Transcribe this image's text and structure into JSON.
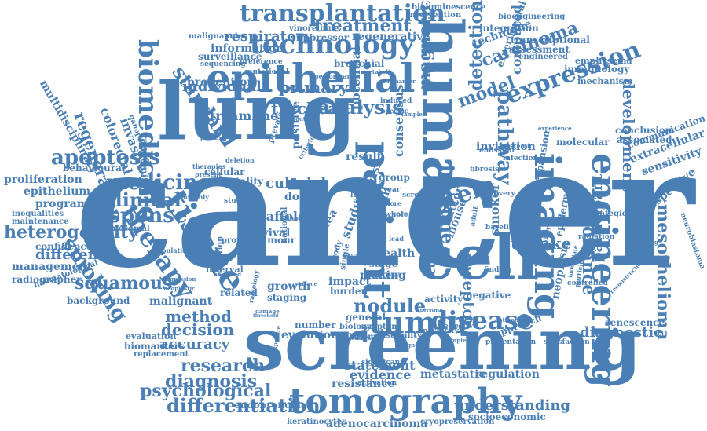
{
  "accent_color": "#4a7fb5",
  "background_color": "#ffffff",
  "words": {
    "cancer": "cancer",
    "screening": "screening",
    "lung": "lung",
    "cell": "cell",
    "epithelial": "epithelial",
    "human": "human",
    "science": "Science",
    "tissue": "tissue",
    "patient": "patient",
    "imaging": "imaging",
    "engineering": "engineering",
    "tomography": "tomography",
    "technology": "technology",
    "transplantation": "transplantation",
    "tumor": "tumor",
    "disease": "disease",
    "biomedicine": "biomedicine",
    "therapy": "therapy",
    "medicine": "medicine",
    "response": "response",
    "clinical": "clinical",
    "apoptosis": "apoptosis",
    "heterogeneity": "heterogeneity",
    "smoking": "smoking",
    "expression": "expression",
    "pathway": "pathway",
    "model": "model",
    "detection": "detection",
    "carcinoma": "carcinoma",
    "magnetic": "magnetic",
    "stem": "stem",
    "nodule": "nodule",
    "development": "development",
    "mesothelioma": "mesothelioma",
    "diagnostic": "diagnostic",
    "resonance": "resonance",
    "diagnosis": "diagnosis",
    "psychological": "psychological",
    "differentiation": "differentiation",
    "research": "research",
    "adenocarcinoma": "adenocarcinoma",
    "understanding": "understanding",
    "respiratory": "respiratory",
    "treatment": "treatment",
    "analysis": "analysis",
    "tracheal": "tracheal",
    "standard": "standard",
    "regeneration": "regeneration",
    "squamous": "squamous",
    "difference": "difference",
    "uptake": "uptake",
    "immune": "immune",
    "receptor": "receptor",
    "participant": "participant",
    "accuracy": "accuracy",
    "decision": "decision",
    "method": "method",
    "proliferation": "proliferation",
    "epithelium": "epithelium",
    "programme": "programme",
    "multidisciplinary": "multidisciplinary",
    "colorectal": "colorectal",
    "invasive": "invasive",
    "behavioural": "behavioural",
    "confidence": "confidence",
    "management": "management",
    "radiographer": "radiographer",
    "background": "background",
    "biomarkers": "biomarkers",
    "evaluation": "evaluation",
    "replacement": "replacement",
    "malignant": "malignant",
    "statement": "statement",
    "evidence": "evidence",
    "resistance": "resistance",
    "endobronchial": "endobronchial",
    "keratinocytes": "keratinocytes",
    "cryopreservation": "cryopreservation",
    "socioeconomic": "socioeconomic",
    "metastatic": "metastatic",
    "regulation": "regulation",
    "neoplasm": "neoplasm",
    "senescence": "senescence",
    "sensitivity": "sensitivity",
    "prospective": "prospective",
    "extracellular": "extracellular",
    "communication": "communication",
    "conclusion": "conclusion",
    "associated": "associated",
    "molecular": "molecular",
    "emphysema": "emphysema",
    "immunology": "immunology",
    "mechanism": "mechanism",
    "engineered": "engineered",
    "transcriptional": "transcriptional",
    "assessment": "assessment",
    "experimental": "experimental",
    "technique": "technique",
    "integration": "integration",
    "bioengineering": "bioengineering",
    "intervention": "intervention",
    "bioluminescence": "bioluminescence",
    "regenerative": "regenerative",
    "suppressor": "suppressor",
    "vinorelbine": "vinorelbine",
    "information": "information",
    "malignancies": "malignancies",
    "surveillance": "surveillance",
    "individual": "individual",
    "progenitor": "progenitor",
    "primary": "primary",
    "streamline": "streamline",
    "culture": "culture",
    "trial": "trial",
    "scaffold": "scaffold",
    "survival": "survival",
    "potential": "potential",
    "result": "result",
    "consensus": "consensus",
    "invitation": "invitation",
    "mouse": "mouse",
    "smoker": "smoker",
    "factor": "factor",
    "current": "current",
    "activity": "activity",
    "negative": "negative",
    "evolution": "evolution",
    "number": "number",
    "general": "general",
    "health": "health",
    "data": "data",
    "stage": "stage",
    "making": "making",
    "review": "review",
    "impact": "impact",
    "burden": "burden",
    "growth": "growth",
    "related": "related",
    "staging": "staging",
    "dose": "dose",
    "scan": "scan",
    "study": "study",
    "mortality": "mortality",
    "cellular": "cellular",
    "protein": "protein",
    "tumour": "tumour",
    "sample": "sample",
    "computed": "computed",
    "positive": "positive",
    "group": "group",
    "risk": "risk",
    "trail": "trail",
    "life": "life",
    "randomised": "randomised",
    "bronchial": "bronchial",
    "sequencing": "sequencing",
    "preference": "preference",
    "mutational": "mutational",
    "epidermal": "epidermal",
    "expansion": "expansion",
    "strategies": "strategies",
    "interval": "interval",
    "national": "national",
    "trachea": "trachea",
    "mutation": "mutation",
    "approach": "approach",
    "chromosomal": "chromosomal",
    "maintenance": "maintenance",
    "inequalities": "inequalities",
    "haematological": "haematological",
    "melanoma": "melanoma",
    "instability": "instability",
    "specificity": "specificity",
    "symptom": "symptom",
    "biology": "biology",
    "presentation": "presentation",
    "satisfaction": "satisfaction",
    "effective": "effective",
    "activation": "activation",
    "significant": "significant",
    "delivery": "delivery",
    "fibrosis": "fibrosis",
    "infection": "infection",
    "emission": "emission",
    "systemic": "systemic",
    "radiation": "radiation",
    "sampling": "sampling",
    "baseline": "baseline",
    "controlled": "controlled",
    "finding": "finding",
    "nanoparticles": "nanoparticles",
    "population": "population",
    "deletion": "deletion",
    "therapies": "therapies",
    "present": "present",
    "studies": "studies",
    "support": "support",
    "commonly": "commonly",
    "approval": "approval",
    "blood": "blood",
    "lobe": "lobe",
    "whole": "whole",
    "body": "body",
    "single": "single",
    "adult": "adult",
    "screen": "screen",
    "time": "time",
    "year": "year",
    "more": "more",
    "care": "care",
    "lead": "lead",
    "performance": "performance",
    "biomarker": "biomarker",
    "induced": "induced",
    "specific": "specific",
    "samples": "samples",
    "criterion": "criterion",
    "experience": "experience",
    "participation": "participation",
    "neuroblastoma": "neuroblastoma",
    "reconstruction": "reconstruction",
    "developing": "developing",
    "immediate": "immediate",
    "eligibility": "eligibility",
    "surface": "surface",
    "observed": "observed",
    "regression": "regression",
    "neoplastic": "neoplastic",
    "damage": "damage",
    "radiology": "radiology",
    "threshold": "threshold",
    "membrane": "membrane",
    "exposure": "exposure",
    "outcome": "outcome",
    "informed": "informed",
    "antibodies": "antibodies",
    "complete": "complete",
    "prognostic": "prognostic",
    "dropout": "dropout",
    "international": "international",
    "interval2": "interval",
    "prevalence": "prevalence",
    "profiling": "profiling",
    "metabolic": "metabolic"
  }
}
